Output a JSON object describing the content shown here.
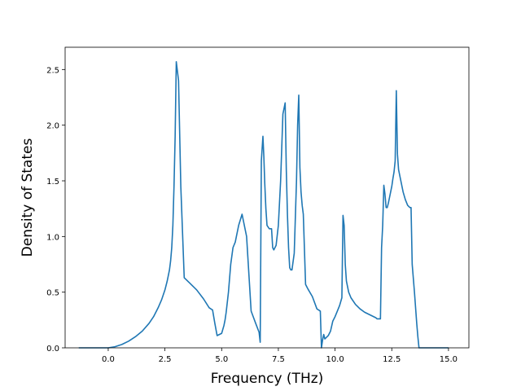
{
  "chart_data": {
    "type": "line",
    "title": "",
    "xlabel": "Frequency (THz)",
    "ylabel": "Density of States",
    "xlim": [
      -1.9,
      15.9
    ],
    "ylim": [
      0.0,
      2.7
    ],
    "xticks": [
      0.0,
      2.5,
      5.0,
      7.5,
      10.0,
      12.5,
      15.0
    ],
    "xtick_labels": [
      "0.0",
      "2.5",
      "5.0",
      "7.5",
      "10.0",
      "12.5",
      "15.0"
    ],
    "yticks": [
      0.0,
      0.5,
      1.0,
      1.5,
      2.0,
      2.5
    ],
    "ytick_labels": [
      "0.0",
      "0.5",
      "1.0",
      "1.5",
      "2.0",
      "2.5"
    ],
    "grid": false,
    "legend": "none",
    "series": [
      {
        "color": "#1f77b4",
        "x": [
          -1.3,
          -0.5,
          0.0,
          0.3,
          0.6,
          0.9,
          1.2,
          1.5,
          1.8,
          2.0,
          2.2,
          2.35,
          2.5,
          2.6,
          2.7,
          2.75,
          2.8,
          2.85,
          2.9,
          2.95,
          3.0,
          3.1,
          3.2,
          3.35,
          3.6,
          3.9,
          4.2,
          4.45,
          4.6,
          4.7,
          4.8,
          4.9,
          5.0,
          5.1,
          5.15,
          5.2,
          5.3,
          5.4,
          5.5,
          5.6,
          5.65,
          5.7,
          5.75,
          5.9,
          6.1,
          6.3,
          6.5,
          6.65,
          6.7,
          6.75,
          6.82,
          6.86,
          6.9,
          6.95,
          7.0,
          7.1,
          7.2,
          7.25,
          7.3,
          7.4,
          7.5,
          7.6,
          7.7,
          7.8,
          7.85,
          7.9,
          7.95,
          8.0,
          8.05,
          8.1,
          8.2,
          8.3,
          8.35,
          8.4,
          8.45,
          8.5,
          8.55,
          8.6,
          8.7,
          8.75,
          8.8,
          9.0,
          9.2,
          9.35,
          9.4,
          9.45,
          9.5,
          9.55,
          9.6,
          9.7,
          9.8,
          9.9,
          10.0,
          10.1,
          10.2,
          10.3,
          10.35,
          10.4,
          10.45,
          10.5,
          10.6,
          10.7,
          10.9,
          11.1,
          11.3,
          11.5,
          11.7,
          11.8,
          11.85,
          11.9,
          12.0,
          12.05,
          12.1,
          12.15,
          12.2,
          12.25,
          12.3,
          12.35,
          12.4,
          12.5,
          12.55,
          12.6,
          12.65,
          12.7,
          12.75,
          12.8,
          12.9,
          13.0,
          13.1,
          13.2,
          13.3,
          13.35,
          13.4,
          13.5,
          13.6,
          13.65,
          13.7,
          14.0,
          14.5,
          15.0
        ],
        "y": [
          0.0,
          0.0,
          0.0,
          0.01,
          0.03,
          0.06,
          0.1,
          0.15,
          0.22,
          0.28,
          0.36,
          0.43,
          0.52,
          0.6,
          0.7,
          0.78,
          0.9,
          1.1,
          1.45,
          1.9,
          2.57,
          2.4,
          1.45,
          0.63,
          0.58,
          0.52,
          0.44,
          0.36,
          0.34,
          0.22,
          0.11,
          0.12,
          0.13,
          0.2,
          0.25,
          0.32,
          0.5,
          0.75,
          0.9,
          0.95,
          1.0,
          1.05,
          1.1,
          1.2,
          1.0,
          0.33,
          0.22,
          0.14,
          0.05,
          1.68,
          1.9,
          1.72,
          1.48,
          1.25,
          1.1,
          1.07,
          1.07,
          0.9,
          0.88,
          0.92,
          1.1,
          1.5,
          2.1,
          2.2,
          1.6,
          1.2,
          0.9,
          0.72,
          0.7,
          0.7,
          0.85,
          1.5,
          2.0,
          2.27,
          1.62,
          1.4,
          1.28,
          1.2,
          0.57,
          0.55,
          0.53,
          0.46,
          0.35,
          0.33,
          0.0,
          0.07,
          0.12,
          0.08,
          0.09,
          0.11,
          0.15,
          0.24,
          0.28,
          0.33,
          0.38,
          0.45,
          1.19,
          1.1,
          0.75,
          0.6,
          0.5,
          0.45,
          0.39,
          0.35,
          0.32,
          0.3,
          0.28,
          0.27,
          0.26,
          0.26,
          0.26,
          0.9,
          1.1,
          1.46,
          1.38,
          1.26,
          1.26,
          1.3,
          1.35,
          1.45,
          1.52,
          1.58,
          1.68,
          2.31,
          1.74,
          1.6,
          1.5,
          1.4,
          1.33,
          1.28,
          1.26,
          1.26,
          0.75,
          0.5,
          0.22,
          0.1,
          0.0,
          0.0,
          0.0,
          0.0
        ]
      }
    ]
  }
}
